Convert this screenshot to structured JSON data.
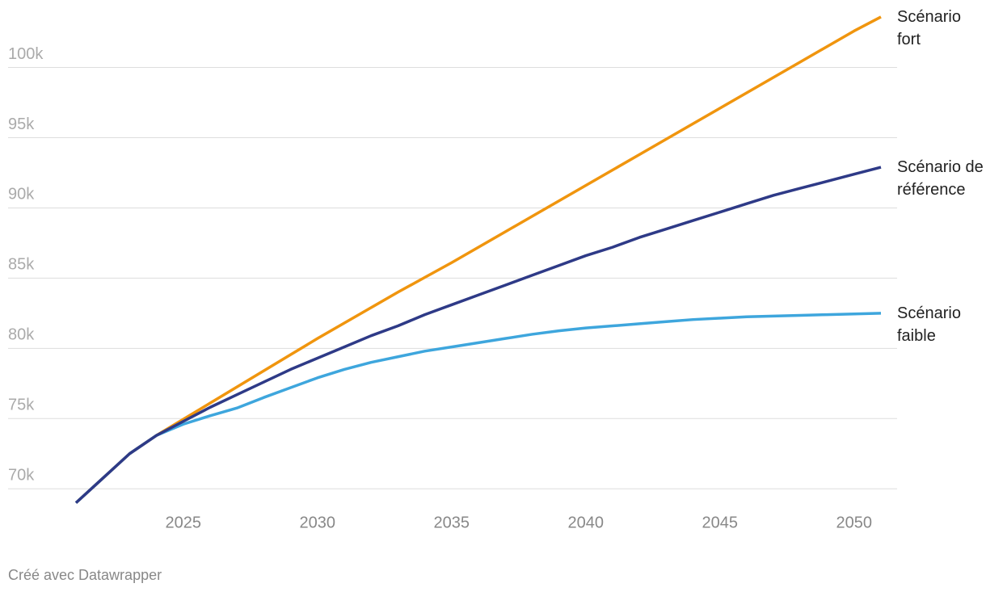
{
  "chart_data": {
    "type": "line",
    "x": [
      2021,
      2022,
      2023,
      2024,
      2025,
      2026,
      2027,
      2028,
      2029,
      2030,
      2031,
      2032,
      2033,
      2034,
      2035,
      2036,
      2037,
      2038,
      2039,
      2040,
      2041,
      2042,
      2043,
      2044,
      2045,
      2046,
      2047,
      2048,
      2049,
      2050,
      2051
    ],
    "series": [
      {
        "name": "Scénario fort",
        "color": "#f0950e",
        "values": [
          69000,
          70750,
          72500,
          73800,
          74950,
          76100,
          77250,
          78400,
          79550,
          80700,
          81800,
          82900,
          84000,
          85050,
          86100,
          87200,
          88300,
          89400,
          90500,
          91600,
          92700,
          93800,
          94900,
          96000,
          97100,
          98200,
          99300,
          100400,
          101500,
          102600,
          103600
        ]
      },
      {
        "name": "Scénario faible",
        "color": "#3ea6dd",
        "values": [
          69000,
          70750,
          72500,
          73800,
          74600,
          75200,
          75750,
          76500,
          77200,
          77900,
          78500,
          79000,
          79400,
          79800,
          80100,
          80400,
          80700,
          81000,
          81250,
          81450,
          81600,
          81750,
          81900,
          82050,
          82150,
          82250,
          82300,
          82350,
          82400,
          82450,
          82500
        ]
      },
      {
        "name": "Scénario de référence",
        "color": "#2e3a87",
        "values": [
          69000,
          70750,
          72500,
          73800,
          74800,
          75800,
          76700,
          77600,
          78500,
          79300,
          80100,
          80900,
          81600,
          82400,
          83100,
          83800,
          84500,
          85200,
          85900,
          86600,
          87200,
          87900,
          88500,
          89100,
          89700,
          90300,
          90900,
          91400,
          91900,
          92400,
          92900
        ]
      }
    ],
    "xlim": [
      2021,
      2051
    ],
    "xticks": [
      2025,
      2030,
      2035,
      2040,
      2045,
      2050
    ],
    "ylim": [
      68000,
      104000
    ],
    "yticks": [
      {
        "value": 70000,
        "label": "70k"
      },
      {
        "value": 75000,
        "label": "75k"
      },
      {
        "value": 80000,
        "label": "80k"
      },
      {
        "value": 85000,
        "label": "85k"
      },
      {
        "value": 90000,
        "label": "90k"
      },
      {
        "value": 95000,
        "label": "95k"
      },
      {
        "value": 100000,
        "label": "100k"
      }
    ],
    "grid": true,
    "credit": "Créé avec Datawrapper"
  }
}
